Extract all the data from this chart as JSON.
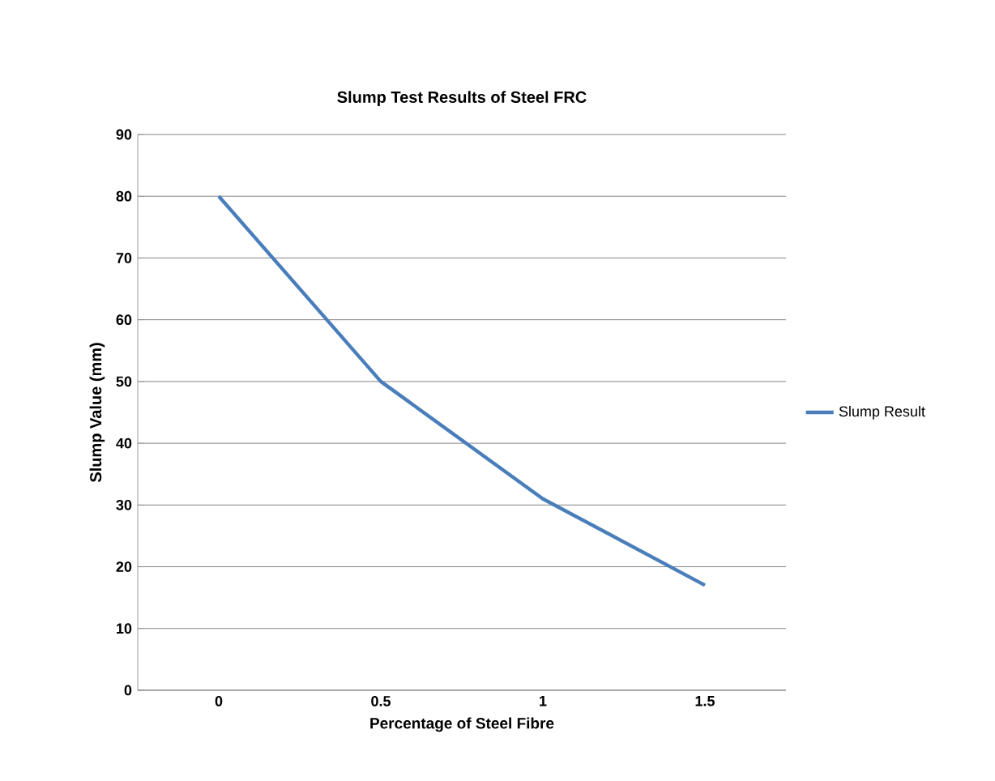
{
  "chart_data": {
    "type": "line",
    "title": "Slump Test Results of Steel FRC",
    "xlabel": "Percentage of Steel Fibre",
    "ylabel": "Slump Value (mm)",
    "categories": [
      "0",
      "0.5",
      "1",
      "1.5"
    ],
    "series": [
      {
        "name": "Slump Result",
        "color": "#4a7ebb",
        "values": [
          80,
          50,
          31,
          17
        ]
      }
    ],
    "ylim": [
      0,
      90
    ],
    "yticks": [
      0,
      10,
      20,
      30,
      40,
      50,
      60,
      70,
      80,
      90
    ],
    "grid": "y",
    "legend": "right",
    "marker": "none",
    "line_style": "solid"
  }
}
